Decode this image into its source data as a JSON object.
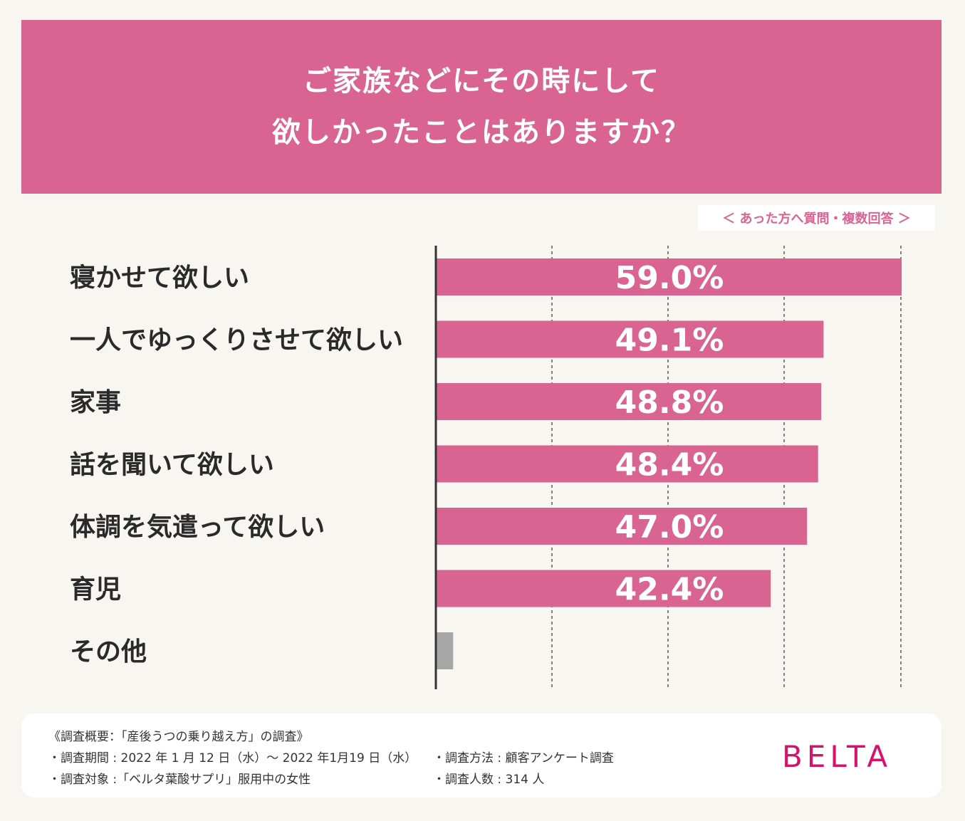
{
  "header": {
    "title_line1": "ご家族などにその時にして",
    "title_line2": "欲しかったことはありますか？"
  },
  "note": "＜ あった方へ質問・複数回答 ＞",
  "chart_data": {
    "type": "bar",
    "orientation": "horizontal",
    "categories": [
      "寝かせて欲しい",
      "一人でゆっくりさせて欲しい",
      "家事",
      "話を聞いて欲しい",
      "体調を気遣って欲しい",
      "育児",
      "その他"
    ],
    "values": [
      59.0,
      49.1,
      48.8,
      48.4,
      47.0,
      42.4,
      2.1
    ],
    "value_labels": [
      "59.0%",
      "49.1%",
      "48.8%",
      "48.4%",
      "47.0%",
      "42.4%",
      ""
    ],
    "xlim": [
      0,
      59.0
    ],
    "grid": "vertical dashed",
    "colors": {
      "main": "#d96491",
      "other": "#a6a6a6"
    }
  },
  "footer": {
    "summary": "《調査概要：「産後うつの乗り越え方」の調査》",
    "period": "・調査期間 : 2022 年 1 月 12 日（水）〜 2022 年1月19 日（水）",
    "target": "・調査対象 :「ベルタ葉酸サプリ」服用中の女性",
    "method": "・調査方法 : 顧客アンケート調査",
    "count": "・調査人数 : 314 人",
    "logo": "BELTA"
  },
  "colors": {
    "accent": "#d96491",
    "background": "#f8f6f1",
    "logo": "#d4136a"
  }
}
